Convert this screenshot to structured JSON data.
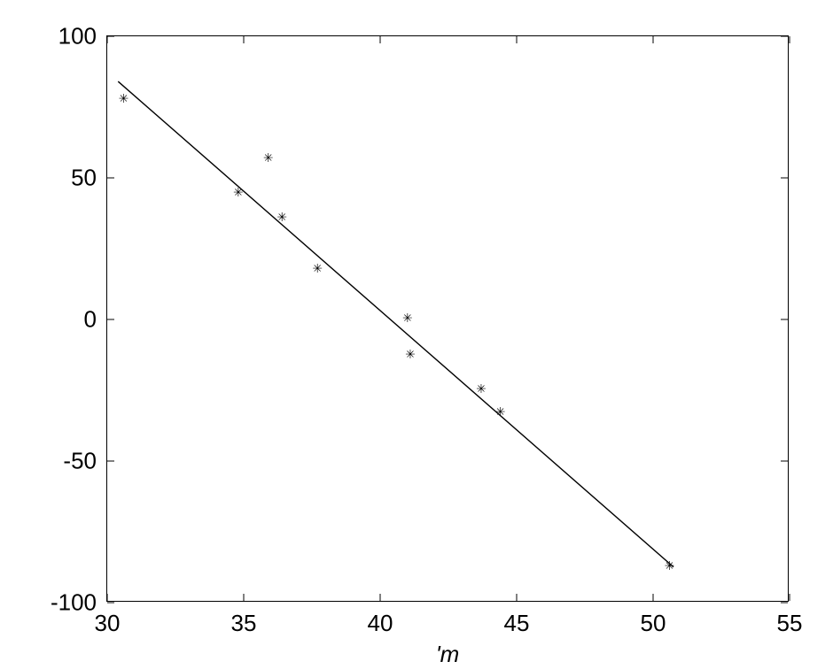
{
  "chart": {
    "type": "scatter",
    "background_color": "#ffffff",
    "border_color": "#000000",
    "tick_fontsize": 26,
    "label_fontsize": 26,
    "xlabel": "'m",
    "xlim": [
      30,
      55
    ],
    "ylim": [
      -100,
      100
    ],
    "xticks": [
      30,
      35,
      40,
      45,
      50,
      55
    ],
    "xtick_labels": [
      "30",
      "35",
      "40",
      "45",
      "50",
      "55"
    ],
    "yticks": [
      -100,
      -50,
      0,
      50,
      100
    ],
    "ytick_labels": [
      "-100",
      "-50",
      "0",
      "50",
      "100"
    ],
    "scatter": {
      "x": [
        30.6,
        34.8,
        35.9,
        36.4,
        37.7,
        41.0,
        41.1,
        43.7,
        44.4,
        50.6
      ],
      "y": [
        77.8,
        44.8,
        56.8,
        35.8,
        17.8,
        0.2,
        -12.4,
        -24.8,
        -32.8,
        -87.2
      ],
      "marker": "*",
      "marker_color": "#000000",
      "marker_size": 18
    },
    "line": {
      "x1": 30.4,
      "y1": 84.0,
      "x2": 50.8,
      "y2": -88.0,
      "color": "#000000",
      "width": 1.4
    }
  }
}
